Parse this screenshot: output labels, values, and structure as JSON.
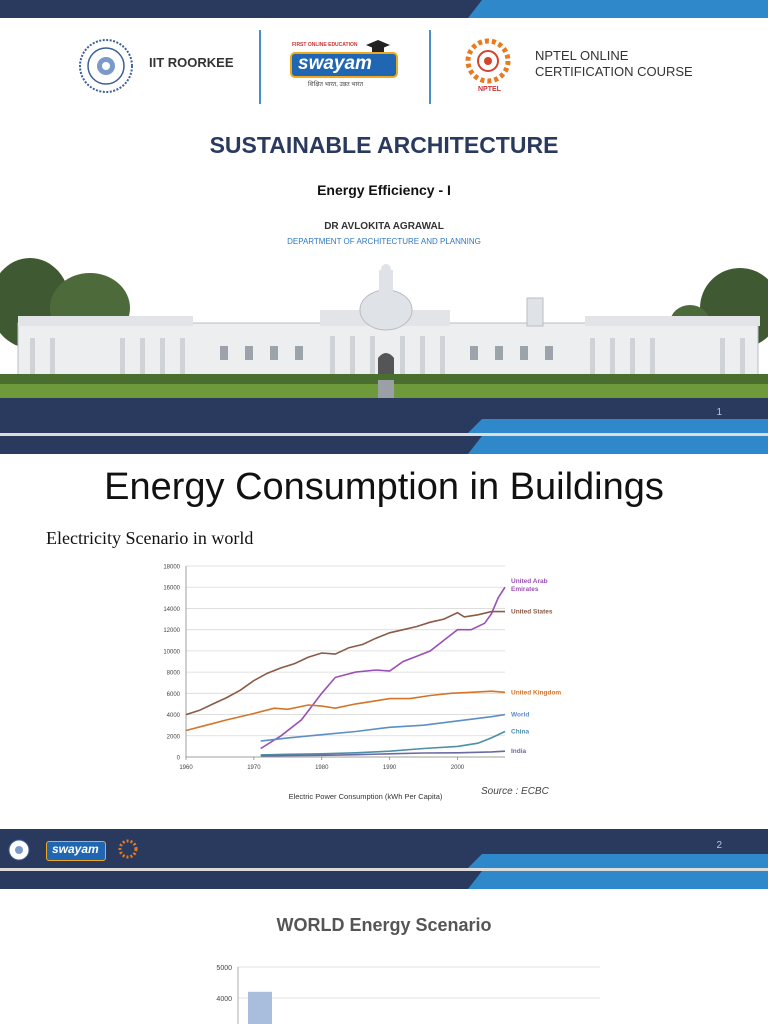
{
  "slide1": {
    "logos": {
      "iit": "IIT ROORKEE",
      "swayam_top": "FIRST ONLINE EDUCATION",
      "swayam": "swayam",
      "swayam_sub": "शिक्षित भारत, उन्नत भारत",
      "nptel_line1": "NPTEL ONLINE",
      "nptel_line2": "CERTIFICATION COURSE",
      "nptel_small": "NPTEL"
    },
    "course_title": "SUSTAINABLE ARCHITECTURE",
    "lecture_title": "Energy Efficiency - I",
    "instructor": "DR AVLOKITA AGRAWAL",
    "department": "DEPARTMENT OF ARCHITECTURE AND PLANNING",
    "page_number": "1"
  },
  "slide2": {
    "title": "Energy Consumption in Buildings",
    "subtitle": "Electricity Scenario in world",
    "source": "Source : ECBC",
    "page_number": "2",
    "footer_logo": "swayam"
  },
  "slide3": {
    "title": "WORLD Energy Scenario"
  },
  "chart_data": [
    {
      "type": "line",
      "title": "",
      "xlabel": "Electric Power Consumption (kWh Per Capita)",
      "ylabel": "",
      "xlim": [
        1960,
        2007
      ],
      "ylim": [
        0,
        18000
      ],
      "x_ticks": [
        1960,
        1970,
        1980,
        1990,
        2000
      ],
      "y_ticks": [
        0,
        2000,
        4000,
        6000,
        8000,
        10000,
        12000,
        14000,
        16000,
        18000
      ],
      "grid": true,
      "legend": "inline labels at right",
      "series": [
        {
          "name": "United Arab Emirates",
          "color": "#9b4fb5",
          "x": [
            1971,
            1974,
            1977,
            1980,
            1982,
            1985,
            1988,
            1990,
            1992,
            1994,
            1996,
            1998,
            2000,
            2002,
            2004,
            2005,
            2006,
            2007
          ],
          "y": [
            800,
            2000,
            3500,
            6000,
            7500,
            8000,
            8200,
            8100,
            9000,
            9500,
            10000,
            11000,
            12000,
            12000,
            12600,
            13500,
            15000,
            16000
          ]
        },
        {
          "name": "United States",
          "color": "#8b5a45",
          "x": [
            1960,
            1962,
            1964,
            1966,
            1968,
            1970,
            1972,
            1974,
            1976,
            1978,
            1980,
            1982,
            1984,
            1986,
            1988,
            1990,
            1992,
            1994,
            1996,
            1998,
            2000,
            2001,
            2003,
            2005,
            2007
          ],
          "y": [
            4000,
            4400,
            5000,
            5600,
            6300,
            7200,
            7900,
            8400,
            8800,
            9400,
            9800,
            9700,
            10300,
            10600,
            11200,
            11700,
            12000,
            12300,
            12700,
            13000,
            13600,
            13200,
            13400,
            13700,
            13700
          ]
        },
        {
          "name": "United Kingdom",
          "color": "#d4742a",
          "x": [
            1960,
            1963,
            1966,
            1970,
            1973,
            1975,
            1978,
            1980,
            1982,
            1985,
            1988,
            1990,
            1993,
            1996,
            1999,
            2002,
            2005,
            2007
          ],
          "y": [
            2500,
            3000,
            3500,
            4100,
            4600,
            4500,
            4900,
            4800,
            4600,
            5000,
            5300,
            5500,
            5500,
            5800,
            6000,
            6100,
            6200,
            6100
          ]
        },
        {
          "name": "World",
          "color": "#5b8fc5",
          "x": [
            1971,
            1975,
            1980,
            1985,
            1990,
            1995,
            2000,
            2005,
            2007
          ],
          "y": [
            1500,
            1800,
            2100,
            2400,
            2800,
            3000,
            3400,
            3800,
            4000
          ]
        },
        {
          "name": "China",
          "color": "#4d8fa6",
          "x": [
            1971,
            1975,
            1980,
            1985,
            1990,
            1995,
            2000,
            2003,
            2005,
            2007
          ],
          "y": [
            200,
            250,
            300,
            400,
            550,
            800,
            1000,
            1300,
            1800,
            2400
          ]
        },
        {
          "name": "India",
          "color": "#6a6aa0",
          "x": [
            1971,
            1975,
            1980,
            1985,
            1990,
            1995,
            2000,
            2005,
            2007
          ],
          "y": [
            100,
            130,
            160,
            220,
            300,
            380,
            400,
            480,
            550
          ]
        }
      ]
    },
    {
      "type": "bar",
      "title": "WORLD Energy Scenario",
      "ylim": [
        0,
        5000
      ],
      "y_ticks_visible": [
        4000,
        5000
      ],
      "categories": [
        ""
      ],
      "values": [
        4200
      ],
      "color": "#a9bedc"
    }
  ]
}
